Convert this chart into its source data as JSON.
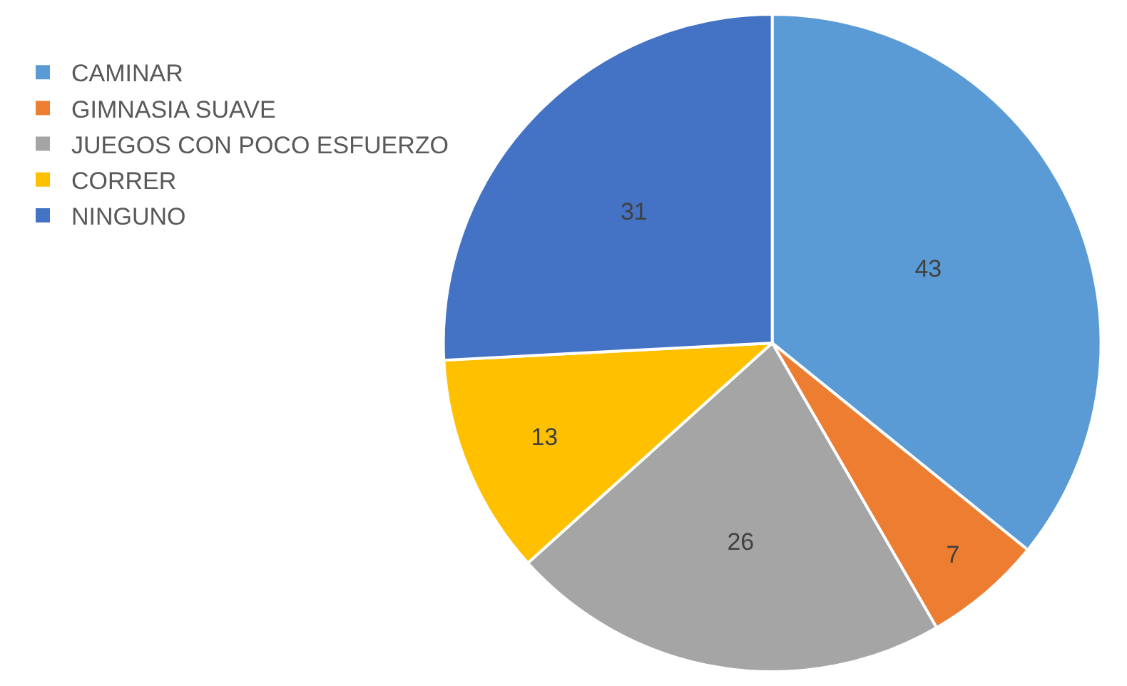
{
  "chart_data": {
    "type": "pie",
    "categories": [
      "CAMINAR",
      "GIMNASIA SUAVE",
      "JUEGOS CON POCO ESFUERZO",
      "CORRER",
      "NINGUNO"
    ],
    "values": [
      43,
      7,
      26,
      13,
      31
    ],
    "colors": [
      "#5b9bd5",
      "#ed7d31",
      "#a5a5a5",
      "#ffc000",
      "#4472c4"
    ],
    "data_labels": true,
    "legend": "left"
  }
}
